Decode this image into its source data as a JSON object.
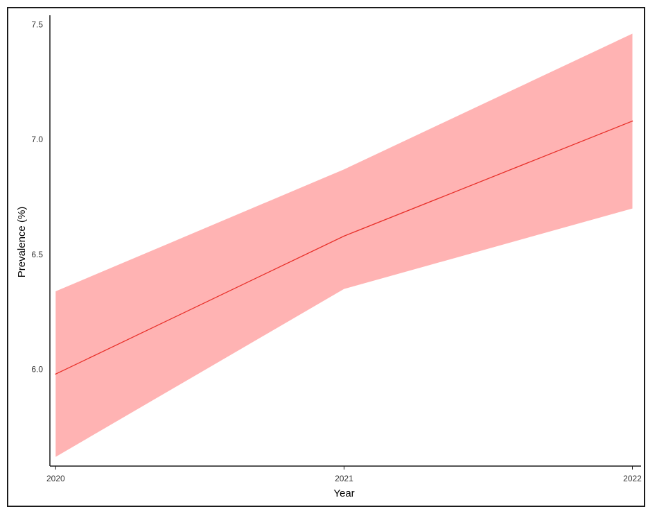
{
  "chart_data": {
    "type": "line",
    "title": "",
    "xlabel": "Year",
    "ylabel": "Prevalence (%)",
    "x": [
      2020,
      2021,
      2022
    ],
    "x_tick_labels": [
      "2020",
      "2021",
      "2022"
    ],
    "y_ticks": [
      6.0,
      6.5,
      7.0,
      7.5
    ],
    "y_tick_labels": [
      "6.0",
      "6.5",
      "7.0",
      "7.5"
    ],
    "xlim": [
      2019.98,
      2022.03
    ],
    "ylim": [
      5.58,
      7.54
    ],
    "grid": false,
    "legend": "none",
    "series": [
      {
        "values": [
          5.98,
          6.58,
          7.08
        ],
        "lower": [
          5.62,
          6.35,
          6.7
        ],
        "upper": [
          6.34,
          6.87,
          7.46
        ],
        "line_color": "#e8302a",
        "band_color": "#ffb3b3"
      }
    ]
  }
}
